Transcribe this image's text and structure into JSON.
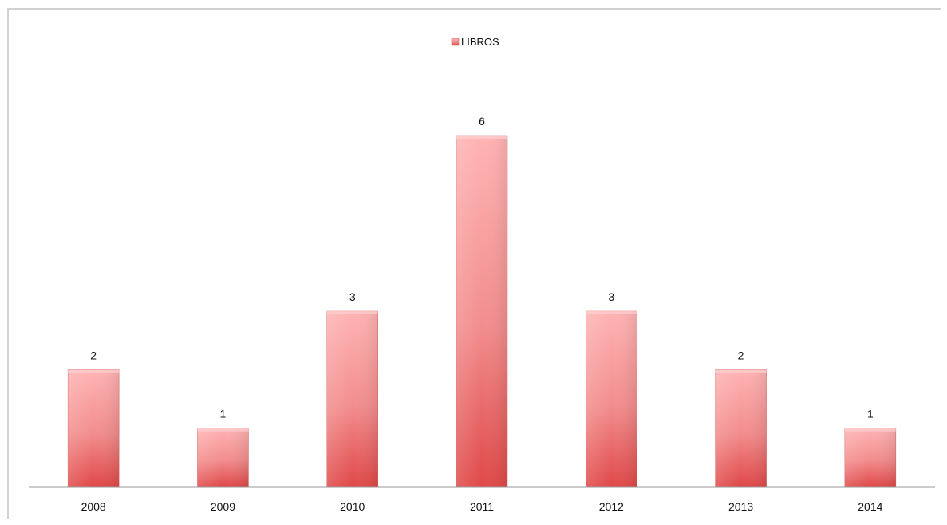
{
  "chart_data": {
    "type": "bar",
    "categories": [
      "2008",
      "2009",
      "2010",
      "2011",
      "2012",
      "2013",
      "2014"
    ],
    "series": [
      {
        "name": "LIBROS",
        "values": [
          2,
          1,
          3,
          6,
          3,
          2,
          1
        ]
      }
    ],
    "ylim": [
      0,
      6
    ],
    "grid": false,
    "legend_position": "top",
    "data_labels": true,
    "colors": {
      "bar": "#e85a5a",
      "bar_light": "#ffaaaa",
      "axis": "#9a9a9a"
    }
  }
}
